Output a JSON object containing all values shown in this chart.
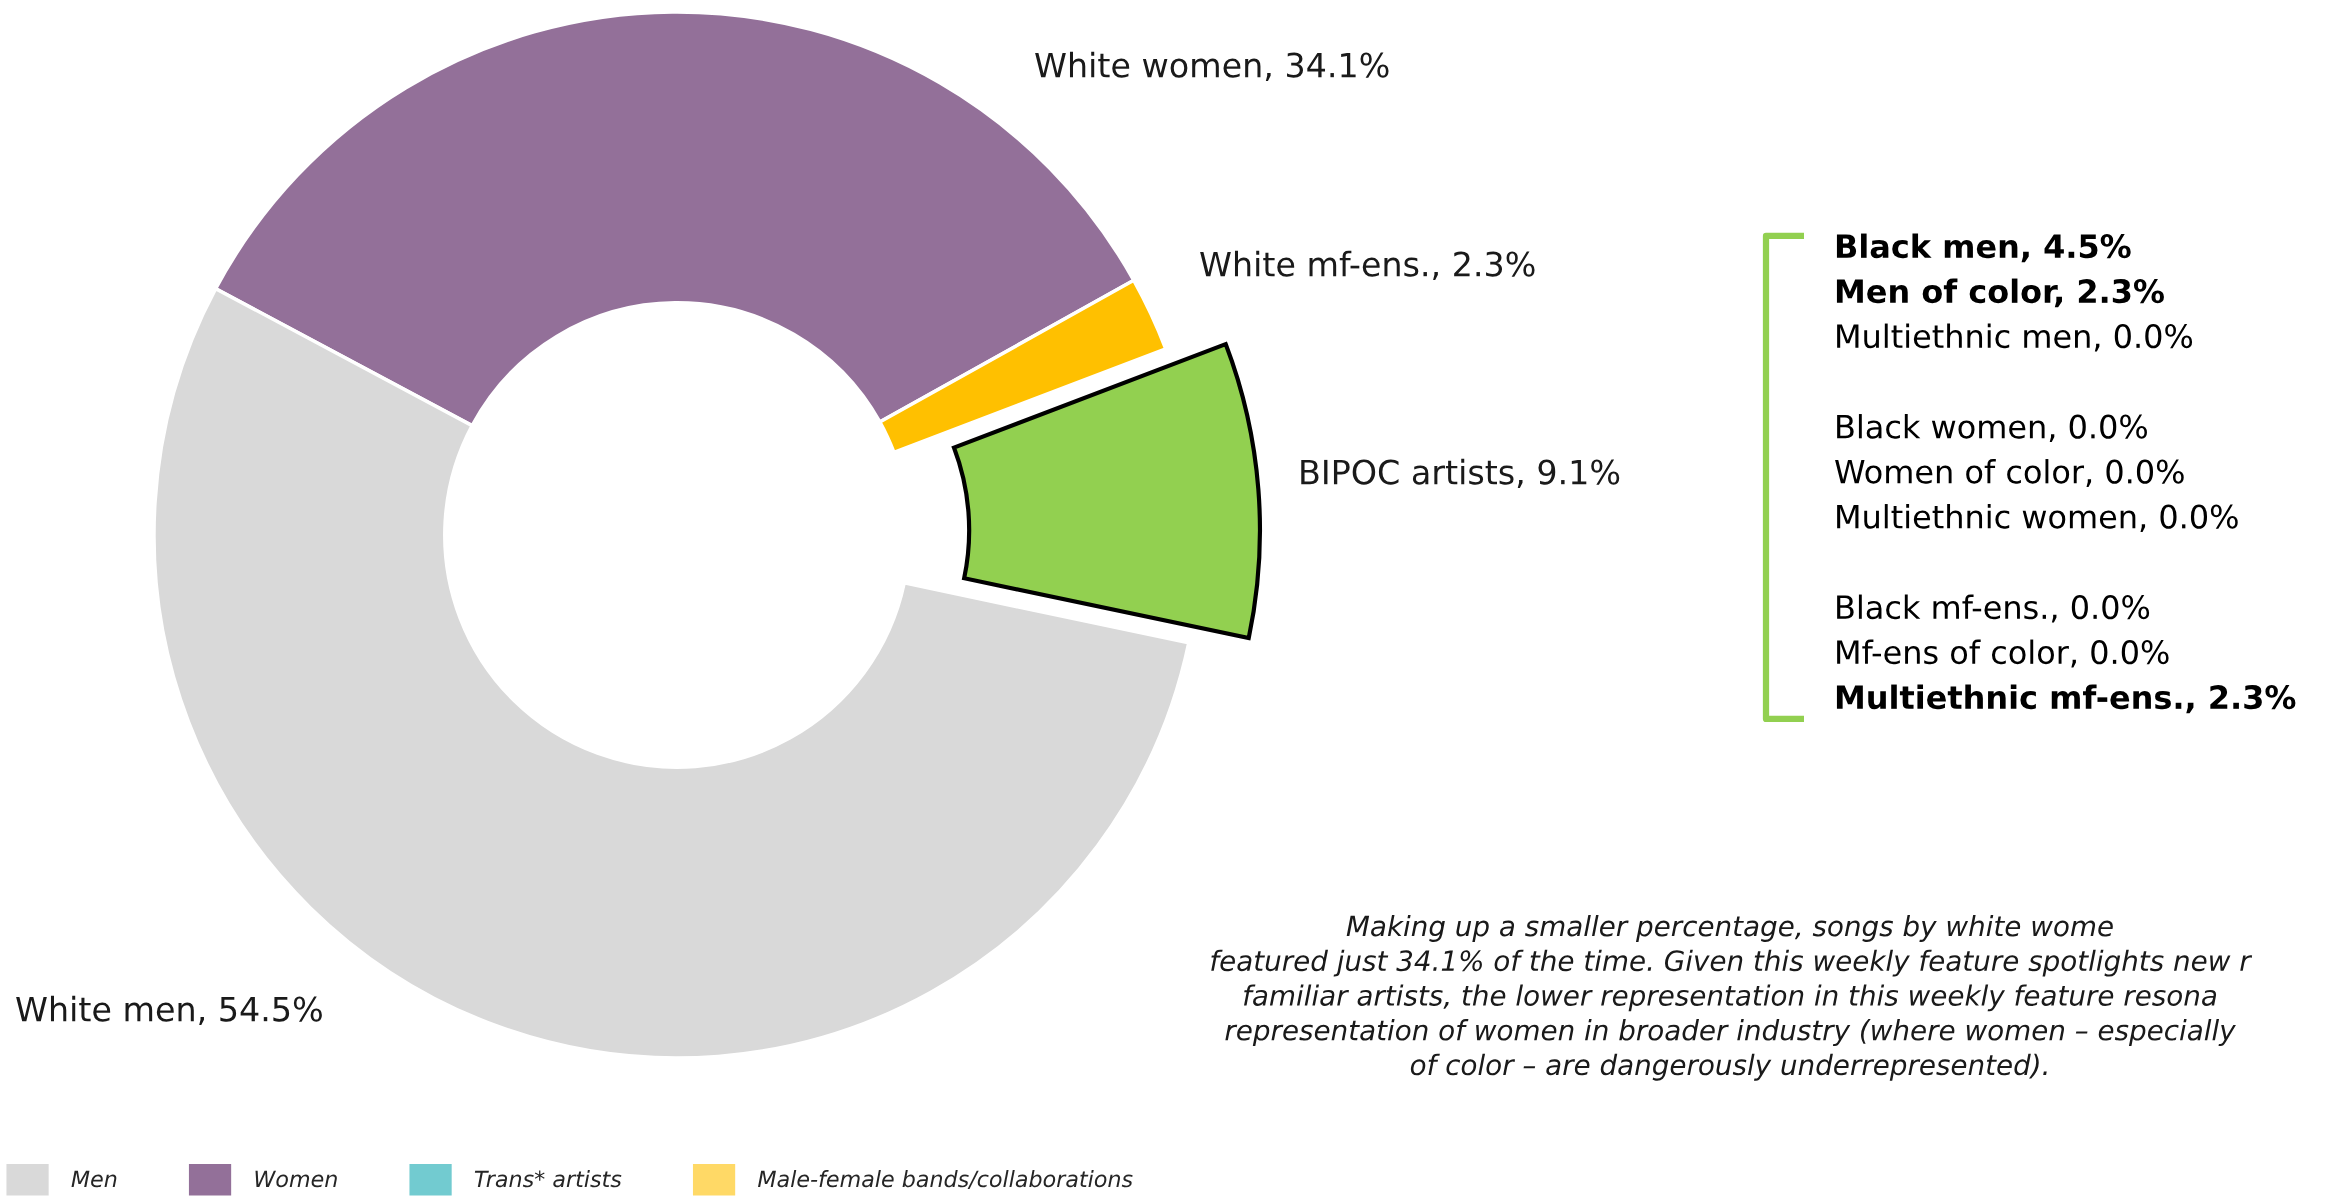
{
  "chart_data": [
    {
      "type": "donut",
      "categories": [
        "White women, 34.1%",
        "White mf-ens., 2.3%",
        "BIPOC artists, 9.1%",
        "White men, 54.5%"
      ],
      "values": [
        34.1,
        2.3,
        9.1,
        54.5
      ],
      "colors": [
        "#937099",
        "#ffc000",
        "#92d050",
        "#d9d9d9"
      ],
      "annotations": [
        "Black men, 4.5%",
        "Men of color, 2.3%",
        "Multiethnic men, 0.0%",
        "Black women, 0.0%",
        "Women of color, 0.0%",
        "Multiethnic women, 0.0%",
        "Black mf-ens., 0.0%",
        "Mf-ens of color, 0.0%",
        "Multiethnic mf-ens., 2.3%",
        "Making up a smaller percentage, songs by white wome\nfeatured just 34.1% of the time. Given this weekly feature spotlights new r\nfamiliar artists, the lower representation in this weekly feature resona\nrepresentation of women in broader industry (where women – especially\nof color – are dangerously underrepresented)."
      ]
    },
    {
      "type": "other",
      "categories": [
        "Men",
        "Women",
        "Trans* artists",
        "Male-female bands/collaborations"
      ],
      "colors": [
        "#d9d9d9",
        "#937099",
        "#72cbd0",
        "#ffd966"
      ]
    }
  ]
}
